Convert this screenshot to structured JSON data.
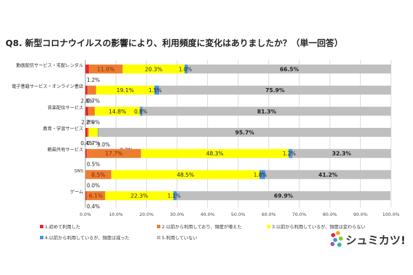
{
  "title": "Q8. 新型コロナウイルスの影響により、利用頻度に変化はありましたか？（単一回答）",
  "brand": {
    "text": "シュミカツ!"
  },
  "chart_data": {
    "type": "bar",
    "orientation": "horizontal",
    "stacked": true,
    "xlim": [
      0,
      100
    ],
    "x_ticks": [
      "0.0%",
      "10.0%",
      "20.0%",
      "30.0%",
      "40.0%",
      "50.0%",
      "60.0%",
      "70.0%",
      "80.0%",
      "90.0%",
      "100.0%"
    ],
    "grid": true,
    "legend_position": "bottom",
    "categories": [
      "動画配信サービス・宅配レンタル",
      "電子書籍サービス・オンライン書店",
      "音楽配信サービス",
      "教育・学習サービス",
      "動画共有サービス",
      "SNS",
      "ゲーム"
    ],
    "series": [
      {
        "name": "1.初めて利用した",
        "color": "#e8262f",
        "values": [
          1.2,
          0.7,
          0.9,
          0.7,
          0.5,
          0.0,
          0.4
        ],
        "labels": [
          "1.2%",
          "0.7%",
          "0.9%",
          "0.7%",
          "0.5%",
          "0.0%",
          "0.4%"
        ]
      },
      {
        "name": "2.以前から利用しており、頻度が増えた",
        "color": "#ed7d31",
        "values": [
          11.0,
          2.8,
          2.2,
          0.4,
          17.7,
          8.5,
          6.1
        ],
        "labels": [
          "11.0%",
          "2.8%",
          "2.2%",
          "0.4%",
          "17.7%",
          "8.5%",
          "6.1%"
        ]
      },
      {
        "name": "3.以前から利用しているが、頻度は変わらない",
        "color": "#ffff00",
        "values": [
          20.3,
          19.1,
          14.8,
          3.0,
          48.3,
          48.5,
          22.3
        ],
        "labels": [
          "20.3%",
          "19.1%",
          "14.8%",
          "3.0%",
          "48.3%",
          "48.5%",
          "22.3%"
        ]
      },
      {
        "name": "4.以前から利用しているが、頻度は減った",
        "color": "#4a90d9",
        "values": [
          1.0,
          1.5,
          0.8,
          0.2,
          1.2,
          1.8,
          1.1
        ],
        "labels": [
          "1.0%",
          "1.5%",
          "0.8%",
          "0.2%",
          "1.2%",
          "1.8%",
          "1.1%"
        ]
      },
      {
        "name": "5.利用していない",
        "color": "#bfbfbf",
        "values": [
          66.5,
          75.9,
          81.3,
          95.7,
          32.3,
          41.2,
          69.9
        ],
        "labels": [
          "66.5%",
          "75.9%",
          "81.3%",
          "95.7%",
          "32.3%",
          "41.2%",
          "69.9%"
        ]
      }
    ]
  }
}
